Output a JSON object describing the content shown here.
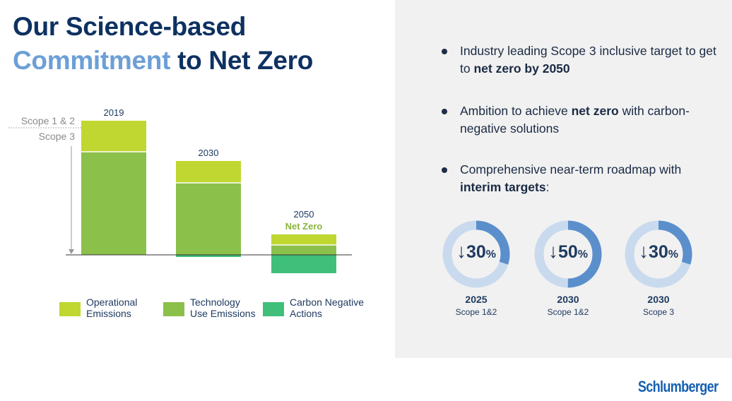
{
  "title": {
    "line1": "Our Science-based",
    "line2_accent": "Commitment",
    "line2_rest": " to Net Zero"
  },
  "colors": {
    "operational": "#bfd730",
    "technology": "#8bc04b",
    "carbon_negative": "#3fbf79",
    "title_dark": "#0e3161",
    "title_accent": "#6c9fd6",
    "donut_track": "#c9daee",
    "donut_fill": "#5b8fcb"
  },
  "chart_data": {
    "type": "bar",
    "stacked": true,
    "categories": [
      "2019",
      "2030",
      "2050"
    ],
    "category_labels": [
      "2019",
      "2030",
      "2050"
    ],
    "extra_label": "Net Zero",
    "series": [
      {
        "name": "Operational Emissions",
        "values": [
          44,
          31,
          15
        ]
      },
      {
        "name": "Technology Use Emissions",
        "values": [
          146,
          102,
          14
        ]
      },
      {
        "name": "Carbon Negative Actions",
        "values": [
          0,
          -3,
          -26
        ]
      }
    ],
    "scope_labels": [
      "Scope 1 & 2",
      "Scope 3"
    ],
    "ylim": [
      -30,
      195
    ],
    "legend": [
      {
        "label": "Operational\nEmissions",
        "color": "#bfd730"
      },
      {
        "label": "Technology\nUse Emissions",
        "color": "#8bc04b"
      },
      {
        "label": "Carbon Negative\nActions",
        "color": "#3fbf79"
      }
    ]
  },
  "bullets": {
    "b1_pre": "Industry leading Scope 3 inclusive target to get to ",
    "b1_bold": "net zero by 2050",
    "b2_pre": "Ambition to achieve ",
    "b2_bold": "net zero",
    "b2_post": " with carbon-negative solutions",
    "b3_pre": "Comprehensive near-term roadmap with ",
    "b3_bold": "interim targets",
    "b3_post": ":"
  },
  "targets": [
    {
      "arrow": "↓",
      "value": "30",
      "unit": "%",
      "fraction": 0.3,
      "year": "2025",
      "scope": "Scope 1&2"
    },
    {
      "arrow": "↓",
      "value": "50",
      "unit": "%",
      "fraction": 0.5,
      "year": "2030",
      "scope": "Scope 1&2"
    },
    {
      "arrow": "↓",
      "value": "30",
      "unit": "%",
      "fraction": 0.3,
      "year": "2030",
      "scope": "Scope 3"
    }
  ],
  "logo": "Schlumberger"
}
